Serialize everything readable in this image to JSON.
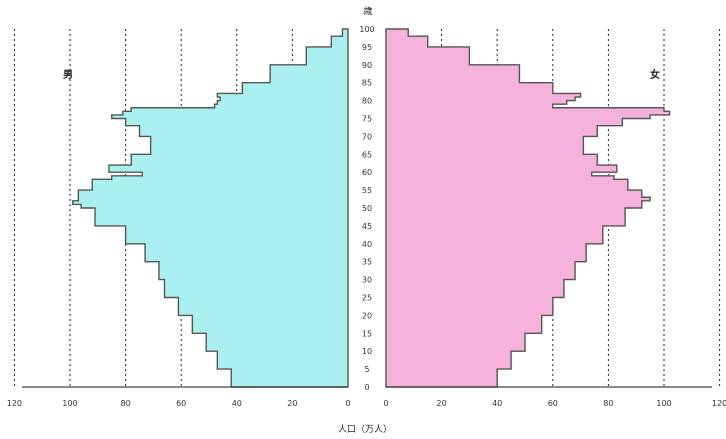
{
  "chart_data": {
    "type": "area",
    "title": "",
    "xlabel": "人口（万人）",
    "ylabel": "歳",
    "left_label": "男",
    "right_label": "女",
    "x_ticks_left": [
      "120",
      "100",
      "80",
      "60",
      "40",
      "20",
      "0"
    ],
    "x_ticks_right": [
      "0",
      "20",
      "40",
      "60",
      "80",
      "100",
      "120"
    ],
    "y_ticks": [
      "0",
      "5",
      "10",
      "15",
      "20",
      "25",
      "30",
      "35",
      "40",
      "45",
      "50",
      "55",
      "60",
      "65",
      "70",
      "75",
      "80",
      "85",
      "90",
      "95",
      "100"
    ],
    "xlim": [
      0,
      120
    ],
    "ylim": [
      0,
      100
    ],
    "grid": "vertical dashed",
    "colors": {
      "male": "#aaf0f0",
      "female": "#f5b3dc",
      "outline": "#555555"
    },
    "series": [
      {
        "name": "男",
        "age": [
          0,
          5,
          10,
          15,
          20,
          25,
          30,
          35,
          40,
          45,
          50,
          51,
          52,
          55,
          58,
          59,
          60,
          62,
          65,
          70,
          73,
          75,
          76,
          77,
          78,
          79,
          80,
          81,
          82,
          85,
          90,
          95,
          98,
          100
        ],
        "values": [
          42,
          47,
          51,
          56,
          61,
          66,
          68,
          73,
          80,
          91,
          96,
          99,
          97,
          92,
          85,
          74,
          86,
          78,
          71,
          75,
          80,
          85,
          81,
          78,
          48,
          47,
          46,
          47,
          38,
          28,
          15,
          6,
          2,
          0
        ]
      },
      {
        "name": "女",
        "age": [
          0,
          5,
          10,
          15,
          20,
          25,
          30,
          35,
          40,
          45,
          50,
          52,
          53,
          55,
          58,
          59,
          60,
          62,
          65,
          70,
          73,
          75,
          76,
          77,
          78,
          79,
          80,
          81,
          82,
          85,
          90,
          95,
          98,
          100
        ],
        "values": [
          40,
          45,
          50,
          56,
          60,
          64,
          68,
          72,
          78,
          86,
          92,
          95,
          92,
          87,
          82,
          74,
          83,
          76,
          71,
          76,
          85,
          95,
          102,
          100,
          60,
          65,
          68,
          70,
          60,
          48,
          30,
          15,
          8,
          3
        ]
      }
    ]
  }
}
